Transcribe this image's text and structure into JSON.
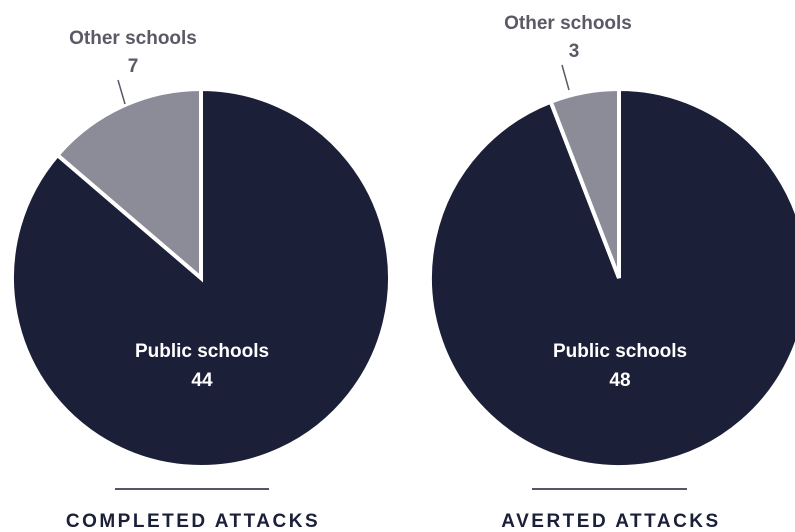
{
  "colors": {
    "major": "#1b1f38",
    "minor": "#8c8c99",
    "separator": "#ffffff",
    "label_light": "#ffffff",
    "label_dark": "#5a5a66",
    "title": "#1b1f38",
    "rule": "#1b1f38"
  },
  "chart_data": [
    {
      "type": "pie",
      "title": "COMPLETED ATTACKS",
      "slices": [
        {
          "label": "Public schools",
          "value": 44
        },
        {
          "label": "Other schools",
          "value": 7
        }
      ]
    },
    {
      "type": "pie",
      "title": "AVERTED ATTACKS",
      "slices": [
        {
          "label": "Public schools",
          "value": 48
        },
        {
          "label": "Other schools",
          "value": 3
        }
      ]
    }
  ]
}
